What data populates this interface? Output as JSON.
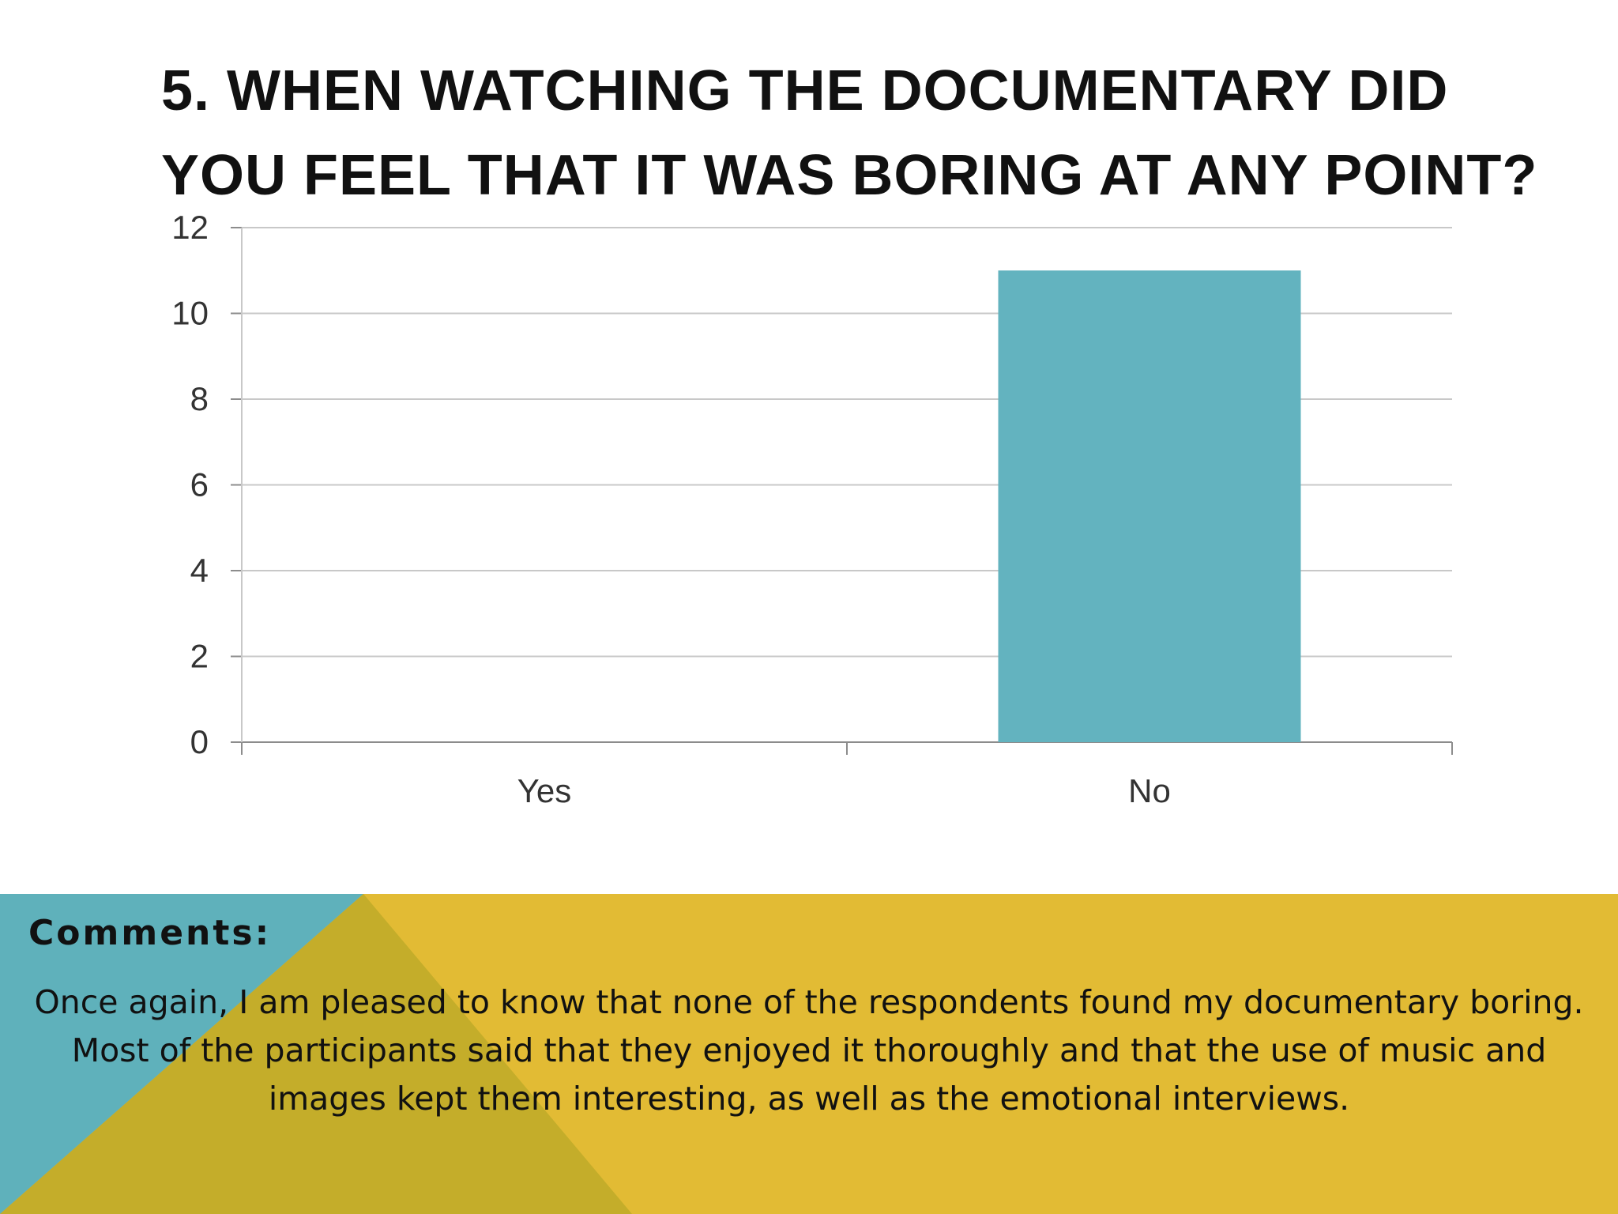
{
  "slide": {
    "title_lines": [
      "5. WHEN WATCHING THE DOCUMENTARY DID",
      "YOU FEEL THAT IT WAS BORING AT ANY POINT?"
    ]
  },
  "colors": {
    "bar": "#63b3bf",
    "teal_band": "#5fb1bb",
    "olive_band": "#c4ad2a",
    "gold_band": "#e2bb34"
  },
  "chart_data": {
    "type": "bar",
    "categories": [
      "Yes",
      "No"
    ],
    "values": [
      0,
      11
    ],
    "ylim": [
      0,
      12
    ],
    "yticks": [
      0,
      2,
      4,
      6,
      8,
      10,
      12
    ],
    "grid": true,
    "legend": "none",
    "title": "",
    "xlabel": "",
    "ylabel": ""
  },
  "comments": {
    "heading": "Comments:",
    "text": "Once again, I am pleased to know that none of the respondents found my documentary boring. Most of the participants said that they enjoyed it thoroughly and that the use of music and images kept them interesting, as well as the emotional interviews."
  }
}
